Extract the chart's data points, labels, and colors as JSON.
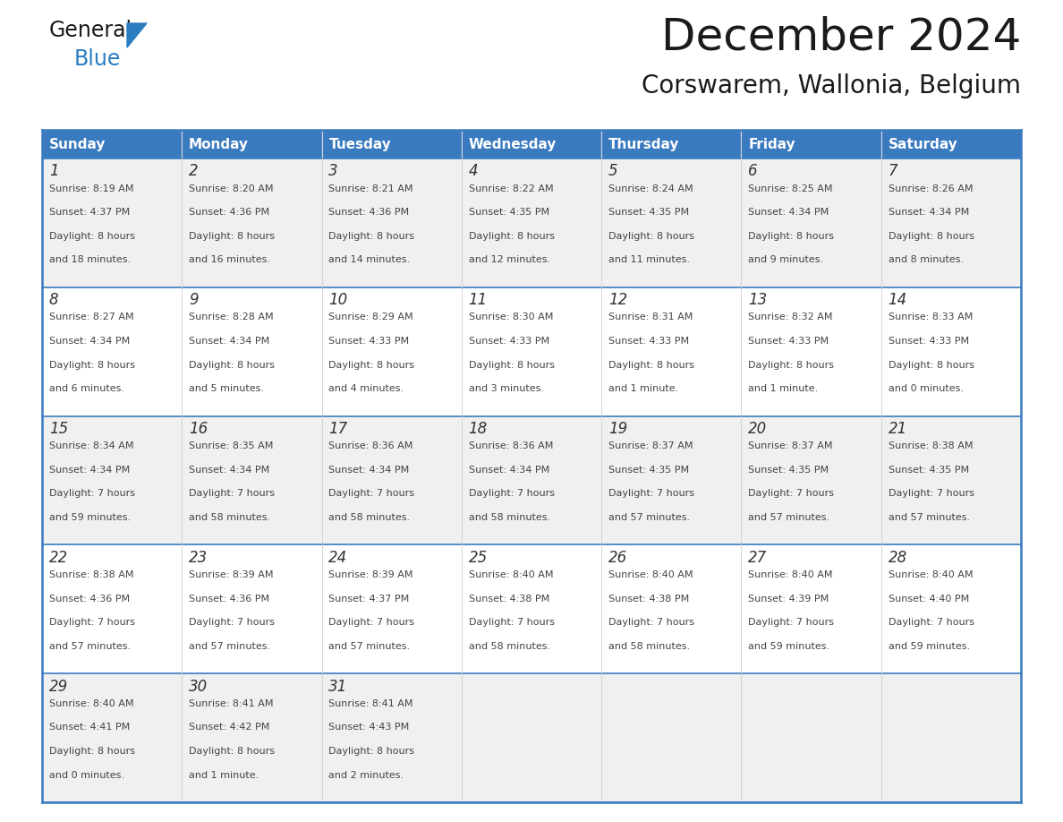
{
  "title": "December 2024",
  "subtitle": "Corswarem, Wallonia, Belgium",
  "days_of_week": [
    "Sunday",
    "Monday",
    "Tuesday",
    "Wednesday",
    "Thursday",
    "Friday",
    "Saturday"
  ],
  "header_bg": "#3a7abf",
  "header_text_color": "#ffffff",
  "cell_bg_odd": "#f0f0f0",
  "cell_bg_even": "#ffffff",
  "cell_text_color": "#444444",
  "day_num_color": "#333333",
  "border_color": "#3a7abf",
  "title_color": "#1a1a1a",
  "subtitle_color": "#1a1a1a",
  "logo_general_color": "#1a1a1a",
  "logo_blue_color": "#2b7dc0",
  "weeks": [
    [
      {
        "day": 1,
        "sunrise": "8:19 AM",
        "sunset": "4:37 PM",
        "daylight": "8 hours and 18 minutes"
      },
      {
        "day": 2,
        "sunrise": "8:20 AM",
        "sunset": "4:36 PM",
        "daylight": "8 hours and 16 minutes"
      },
      {
        "day": 3,
        "sunrise": "8:21 AM",
        "sunset": "4:36 PM",
        "daylight": "8 hours and 14 minutes"
      },
      {
        "day": 4,
        "sunrise": "8:22 AM",
        "sunset": "4:35 PM",
        "daylight": "8 hours and 12 minutes"
      },
      {
        "day": 5,
        "sunrise": "8:24 AM",
        "sunset": "4:35 PM",
        "daylight": "8 hours and 11 minutes"
      },
      {
        "day": 6,
        "sunrise": "8:25 AM",
        "sunset": "4:34 PM",
        "daylight": "8 hours and 9 minutes"
      },
      {
        "day": 7,
        "sunrise": "8:26 AM",
        "sunset": "4:34 PM",
        "daylight": "8 hours and 8 minutes"
      }
    ],
    [
      {
        "day": 8,
        "sunrise": "8:27 AM",
        "sunset": "4:34 PM",
        "daylight": "8 hours and 6 minutes"
      },
      {
        "day": 9,
        "sunrise": "8:28 AM",
        "sunset": "4:34 PM",
        "daylight": "8 hours and 5 minutes"
      },
      {
        "day": 10,
        "sunrise": "8:29 AM",
        "sunset": "4:33 PM",
        "daylight": "8 hours and 4 minutes"
      },
      {
        "day": 11,
        "sunrise": "8:30 AM",
        "sunset": "4:33 PM",
        "daylight": "8 hours and 3 minutes"
      },
      {
        "day": 12,
        "sunrise": "8:31 AM",
        "sunset": "4:33 PM",
        "daylight": "8 hours and 1 minute"
      },
      {
        "day": 13,
        "sunrise": "8:32 AM",
        "sunset": "4:33 PM",
        "daylight": "8 hours and 1 minute"
      },
      {
        "day": 14,
        "sunrise": "8:33 AM",
        "sunset": "4:33 PM",
        "daylight": "8 hours and 0 minutes"
      }
    ],
    [
      {
        "day": 15,
        "sunrise": "8:34 AM",
        "sunset": "4:34 PM",
        "daylight": "7 hours and 59 minutes"
      },
      {
        "day": 16,
        "sunrise": "8:35 AM",
        "sunset": "4:34 PM",
        "daylight": "7 hours and 58 minutes"
      },
      {
        "day": 17,
        "sunrise": "8:36 AM",
        "sunset": "4:34 PM",
        "daylight": "7 hours and 58 minutes"
      },
      {
        "day": 18,
        "sunrise": "8:36 AM",
        "sunset": "4:34 PM",
        "daylight": "7 hours and 58 minutes"
      },
      {
        "day": 19,
        "sunrise": "8:37 AM",
        "sunset": "4:35 PM",
        "daylight": "7 hours and 57 minutes"
      },
      {
        "day": 20,
        "sunrise": "8:37 AM",
        "sunset": "4:35 PM",
        "daylight": "7 hours and 57 minutes"
      },
      {
        "day": 21,
        "sunrise": "8:38 AM",
        "sunset": "4:35 PM",
        "daylight": "7 hours and 57 minutes"
      }
    ],
    [
      {
        "day": 22,
        "sunrise": "8:38 AM",
        "sunset": "4:36 PM",
        "daylight": "7 hours and 57 minutes"
      },
      {
        "day": 23,
        "sunrise": "8:39 AM",
        "sunset": "4:36 PM",
        "daylight": "7 hours and 57 minutes"
      },
      {
        "day": 24,
        "sunrise": "8:39 AM",
        "sunset": "4:37 PM",
        "daylight": "7 hours and 57 minutes"
      },
      {
        "day": 25,
        "sunrise": "8:40 AM",
        "sunset": "4:38 PM",
        "daylight": "7 hours and 58 minutes"
      },
      {
        "day": 26,
        "sunrise": "8:40 AM",
        "sunset": "4:38 PM",
        "daylight": "7 hours and 58 minutes"
      },
      {
        "day": 27,
        "sunrise": "8:40 AM",
        "sunset": "4:39 PM",
        "daylight": "7 hours and 59 minutes"
      },
      {
        "day": 28,
        "sunrise": "8:40 AM",
        "sunset": "4:40 PM",
        "daylight": "7 hours and 59 minutes"
      }
    ],
    [
      {
        "day": 29,
        "sunrise": "8:40 AM",
        "sunset": "4:41 PM",
        "daylight": "8 hours and 0 minutes"
      },
      {
        "day": 30,
        "sunrise": "8:41 AM",
        "sunset": "4:42 PM",
        "daylight": "8 hours and 1 minute"
      },
      {
        "day": 31,
        "sunrise": "8:41 AM",
        "sunset": "4:43 PM",
        "daylight": "8 hours and 2 minutes"
      },
      null,
      null,
      null,
      null
    ]
  ]
}
